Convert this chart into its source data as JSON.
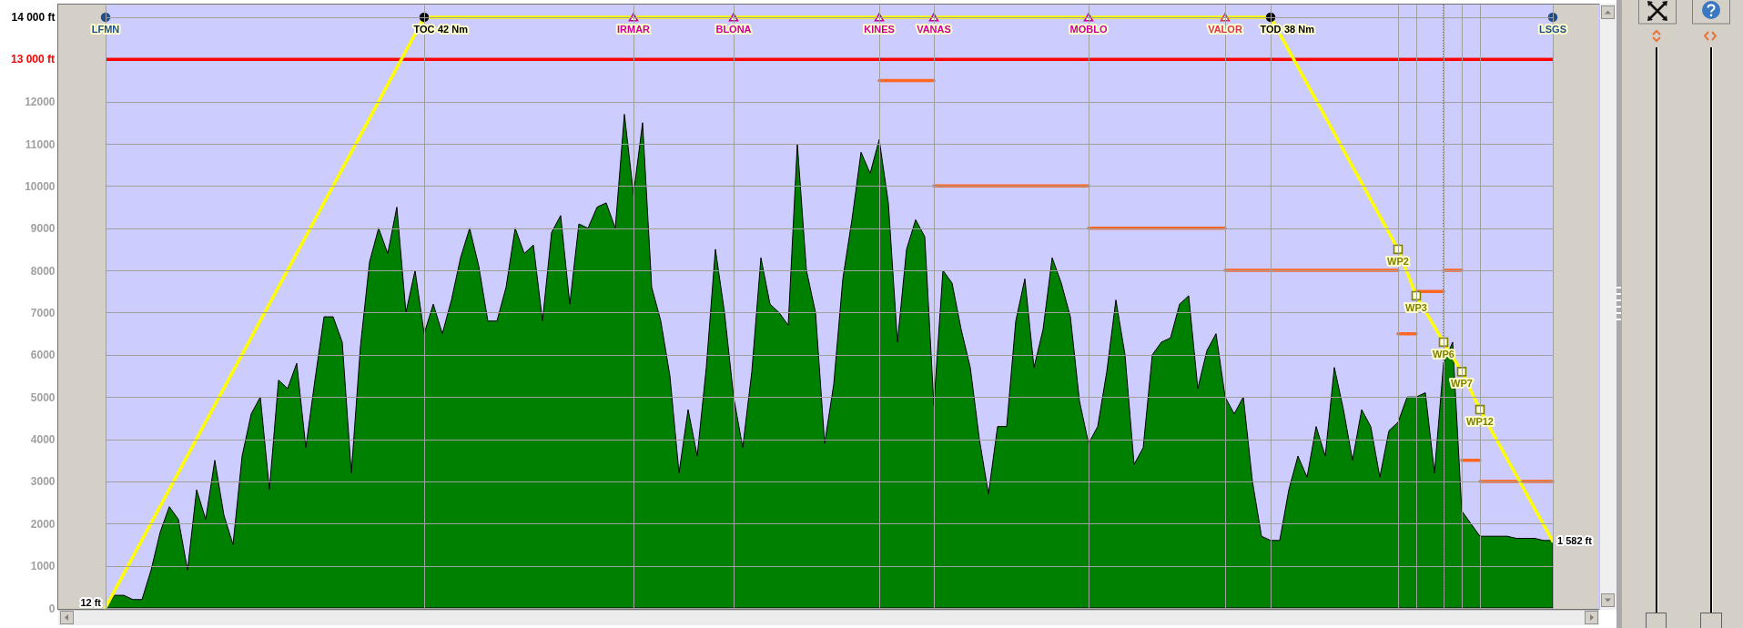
{
  "chart_data": {
    "type": "area",
    "categories": [
      "LFMN",
      null,
      null,
      null,
      null,
      null,
      null,
      null,
      null,
      null,
      null,
      null,
      null,
      null,
      null,
      null,
      null,
      null,
      null,
      null,
      null,
      null,
      null,
      null,
      null,
      null,
      null,
      null,
      null,
      null,
      null,
      null,
      null,
      null,
      null,
      "TOC",
      null,
      null,
      null,
      null,
      null,
      null,
      null,
      null,
      null,
      null,
      null,
      null,
      null,
      null,
      null,
      null,
      null,
      null,
      null,
      null,
      null,
      null,
      "IRMAR",
      null,
      null,
      null,
      null,
      null,
      null,
      null,
      null,
      null,
      null,
      "BLONA",
      null,
      null,
      null,
      null,
      null,
      null,
      null,
      null,
      null,
      null,
      null,
      null,
      null,
      null,
      null,
      "KINES",
      null,
      null,
      null,
      null,
      null,
      "VANAS",
      null,
      null,
      null,
      null,
      null,
      null,
      null,
      null,
      null,
      null,
      null,
      null,
      null,
      null,
      null,
      null,
      "MOBLO",
      null,
      null,
      null,
      null,
      null,
      null,
      null,
      null,
      null,
      null,
      null,
      null,
      null,
      null,
      "VALOR",
      null,
      null,
      null,
      null,
      "TOD",
      null,
      null,
      null,
      null,
      null,
      null,
      null,
      null,
      null,
      null,
      null,
      null,
      null,
      "WP2",
      null,
      "WP3",
      null,
      null,
      "WP6",
      null,
      "WP7",
      null,
      "WP12",
      null,
      null,
      null,
      null,
      null,
      null,
      null,
      "LSGS"
    ],
    "series": [
      {
        "color": "#008000",
        "values": [
          10,
          300,
          300,
          200,
          200,
          900,
          1800,
          2400,
          2100,
          900,
          2800,
          2100,
          3500,
          2200,
          1500,
          3600,
          4600,
          5000,
          2800,
          5400,
          5200,
          5800,
          3800,
          5400,
          6900,
          6900,
          6300,
          3200,
          6200,
          8200,
          9000,
          8400,
          9500,
          7000,
          8000,
          6500,
          7200,
          6500,
          7300,
          8300,
          9000,
          8100,
          6800,
          6800,
          7600,
          9000,
          8400,
          8600,
          6800,
          8900,
          9300,
          7200,
          9100,
          9000,
          9500,
          9600,
          9000,
          11700,
          9800,
          11500,
          7600,
          6800,
          5500,
          3200,
          4700,
          3600,
          5700,
          8500,
          7000,
          5000,
          3800,
          5600,
          8300,
          7200,
          7000,
          6700,
          11000,
          8000,
          7000,
          3900,
          5300,
          7800,
          9200,
          10800,
          10300,
          11100,
          9600,
          6300,
          8500,
          9200,
          8800,
          4800,
          8000,
          7700,
          6600,
          5700,
          4000,
          2700,
          4300,
          4300,
          6800,
          7800,
          5700,
          6600,
          8300,
          7700,
          6900,
          4900,
          3900,
          4300,
          5600,
          7300,
          6000,
          3400,
          3800,
          6000,
          6300,
          6400,
          7200,
          7400,
          5200,
          6100,
          6500,
          5000,
          4600,
          5000,
          3000,
          1700,
          1600,
          1600,
          2800,
          3600,
          3100,
          4300,
          3600,
          5700,
          4700,
          3500,
          4700,
          4300,
          3100,
          4200,
          4400,
          5000,
          5000,
          5100,
          3200,
          5800,
          6300,
          2300,
          2000,
          1700,
          1700,
          1700,
          1700,
          1650,
          1650,
          1650,
          1600,
          1600
        ]
      },
      {
        "type": "line",
        "color": "#ff6622",
        "x": [
          "KINES",
          "VANAS"
        ],
        "values": [
          12500,
          12500
        ]
      },
      {
        "type": "line",
        "color": "#ff6622",
        "x": [
          "VANAS",
          "MOBLO"
        ],
        "values": [
          10000,
          10000
        ]
      },
      {
        "type": "line",
        "color": "#ff6622",
        "x": [
          "MOBLO",
          "VALOR"
        ],
        "values": [
          9000,
          9000
        ]
      },
      {
        "type": "line",
        "color": "#ff6622",
        "x": [
          "VALOR",
          "WP2"
        ],
        "values": [
          8000,
          8000
        ]
      },
      {
        "type": "line",
        "color": "#ff6622",
        "x": [
          "WP2",
          "WP3"
        ],
        "values": [
          6500,
          6500
        ]
      },
      {
        "type": "line",
        "color": "#ff6622",
        "x": [
          "WP3",
          "WP6"
        ],
        "values": [
          7500,
          7500
        ]
      },
      {
        "type": "line",
        "color": "#ff6622",
        "x": [
          "WP6",
          "WP7"
        ],
        "values": [
          8000,
          8000
        ]
      },
      {
        "type": "line",
        "color": "#ff6622",
        "x": [
          "WP7",
          "WP12"
        ],
        "values": [
          3500,
          3500
        ]
      },
      {
        "type": "line",
        "color": "#ff6622",
        "x": [
          "WP12",
          "LSGS"
        ],
        "values": [
          3000,
          3000
        ]
      },
      {
        "type": "line",
        "color": "#ffff00",
        "x": [
          "LFMN",
          "TOC",
          "TOD",
          "WP2",
          "WP3",
          "WP6",
          "WP7",
          "WP12",
          "LSGS"
        ],
        "values": [
          12,
          14000,
          14000,
          8500,
          7400,
          6300,
          5600,
          4700,
          1582
        ],
        "value_labels": [
          "12 ft",
          null,
          null,
          null,
          null,
          null,
          null,
          null,
          "1 582 ft"
        ]
      },
      {
        "type": "scatter",
        "marker": "circle",
        "color": "#000000",
        "x": [
          "TOC",
          "TOD"
        ],
        "values": [
          14000,
          14000
        ]
      },
      {
        "type": "scatter",
        "marker": "triangle",
        "colors": [
          "#cc0099",
          "#cc0099",
          "#cc0099",
          "#cc0099",
          "#cc0099",
          "#dd3355"
        ],
        "x": [
          "IRMAR",
          "BLONA",
          "KINES",
          "VANAS",
          "MOBLO",
          "VALOR"
        ],
        "values": [
          14000,
          14000,
          14000,
          14000,
          14000,
          14000
        ]
      },
      {
        "type": "scatter",
        "marker": "square",
        "color": "#808000",
        "x": [
          "WP2",
          "WP3",
          "WP6",
          "WP7",
          "WP12"
        ],
        "values": [
          8500,
          7400,
          6300,
          5600,
          4700
        ]
      },
      {
        "type": "scatter",
        "marker": "circle",
        "color": "#1f4e8c",
        "x": [
          "LFMN",
          "LSGS"
        ],
        "values": [
          14000,
          14000
        ]
      }
    ],
    "ylim": [
      0,
      14300
    ],
    "yticks": [
      0,
      1000,
      2000,
      3000,
      4000,
      5000,
      6000,
      7000,
      8000,
      9000,
      10000,
      11000,
      12000,
      {
        "value": 14000,
        "label": "14 000 ft"
      }
    ],
    "grid": true,
    "ref_lines": [
      {
        "axis": "y",
        "value": 13000,
        "label": "13 000 ft",
        "color": "#ff0000"
      },
      {
        "axis": "x",
        "value": "WP6",
        "color": "#000000",
        "line_style": "dotted"
      }
    ],
    "annotations": [
      {
        "text": "42 Nm",
        "x": "TOC",
        "y": 14000
      },
      {
        "text": "38 Nm",
        "x": "TOD",
        "y": 14000
      }
    ]
  }
}
